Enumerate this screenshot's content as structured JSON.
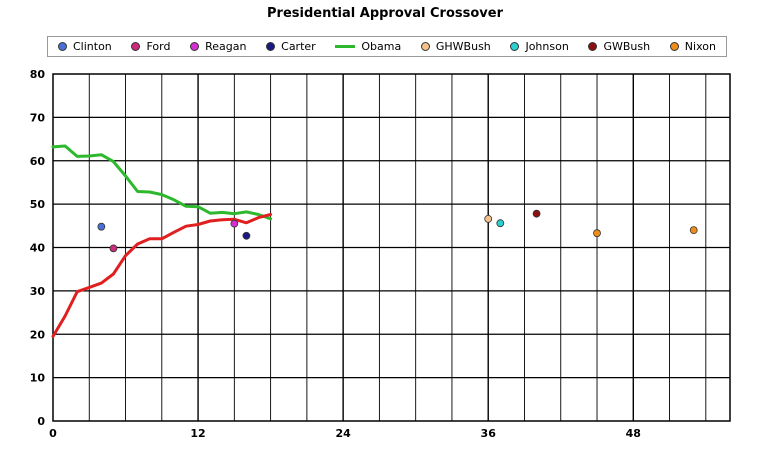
{
  "chart_data": {
    "type": "scatter",
    "title": "Presidential Approval Crossover",
    "xlabel": "",
    "ylabel": "",
    "xlim": [
      0,
      56
    ],
    "ylim": [
      0,
      80
    ],
    "x_ticks": [
      "0",
      "12",
      "24",
      "36",
      "48"
    ],
    "y_ticks": [
      "0",
      "10",
      "20",
      "30",
      "40",
      "50",
      "60",
      "70",
      "80"
    ],
    "grid": true,
    "legend_position": "top",
    "legend": [
      "Clinton",
      "Ford",
      "Reagan",
      "Carter",
      "Obama",
      "GHWBush",
      "Johnson",
      "GWBush",
      "Nixon"
    ],
    "series": [
      {
        "name": "Clinton",
        "type": "point",
        "color": "#4a70d8",
        "points": [
          [
            4,
            44.8
          ]
        ]
      },
      {
        "name": "Ford",
        "type": "point",
        "color": "#cc2a7a",
        "points": [
          [
            5,
            39.8
          ]
        ]
      },
      {
        "name": "Reagan",
        "type": "point",
        "color": "#d42fd0",
        "points": [
          [
            15,
            45.5
          ]
        ]
      },
      {
        "name": "Carter",
        "type": "point",
        "color": "#1a1a80",
        "points": [
          [
            16,
            42.7
          ]
        ]
      },
      {
        "name": "Obama",
        "type": "line",
        "color": "#2db82d",
        "points": [
          [
            0,
            63.2
          ],
          [
            1,
            63.4
          ],
          [
            2,
            61.0
          ],
          [
            3,
            61.1
          ],
          [
            4,
            61.4
          ],
          [
            5,
            59.8
          ],
          [
            6,
            56.5
          ],
          [
            7,
            52.9
          ],
          [
            8,
            52.8
          ],
          [
            9,
            52.2
          ],
          [
            10,
            51.0
          ],
          [
            11,
            49.5
          ],
          [
            12,
            49.4
          ],
          [
            13,
            47.9
          ],
          [
            14,
            48.1
          ],
          [
            15,
            47.8
          ],
          [
            16,
            48.2
          ],
          [
            17,
            47.6
          ],
          [
            18,
            46.6
          ]
        ]
      },
      {
        "name": "GHWBush",
        "type": "point",
        "color": "#f5c08c",
        "points": [
          [
            36,
            46.6
          ]
        ]
      },
      {
        "name": "Johnson",
        "type": "point",
        "color": "#2ad0d0",
        "points": [
          [
            37,
            45.6
          ]
        ]
      },
      {
        "name": "GWBush",
        "type": "point",
        "color": "#8b1010",
        "points": [
          [
            40,
            47.8
          ]
        ]
      },
      {
        "name": "Nixon",
        "type": "point",
        "color": "#f08c1a",
        "points": [
          [
            45,
            43.3
          ],
          [
            53,
            44.0
          ]
        ]
      },
      {
        "name": "",
        "type": "line",
        "color": "#e02020",
        "points": [
          [
            0,
            19.5
          ],
          [
            1,
            24.2
          ],
          [
            2,
            29.8
          ],
          [
            3,
            30.8
          ],
          [
            4,
            31.8
          ],
          [
            5,
            33.9
          ],
          [
            6,
            38.1
          ],
          [
            7,
            40.8
          ],
          [
            8,
            42.0
          ],
          [
            9,
            42.0
          ],
          [
            10,
            43.5
          ],
          [
            11,
            44.9
          ],
          [
            12,
            45.3
          ],
          [
            13,
            46.1
          ],
          [
            14,
            46.4
          ],
          [
            15,
            46.5
          ],
          [
            16,
            45.7
          ],
          [
            17,
            46.9
          ],
          [
            18,
            47.6
          ]
        ]
      }
    ]
  }
}
